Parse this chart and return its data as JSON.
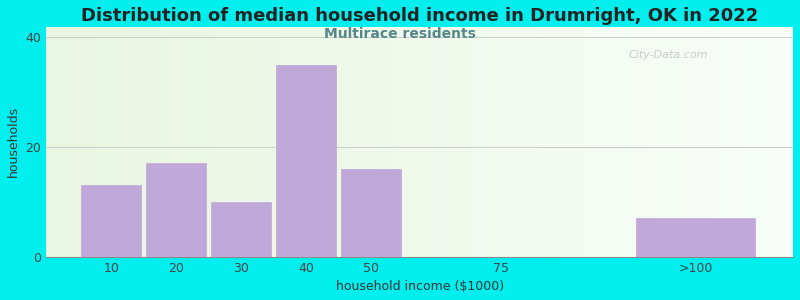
{
  "title": "Distribution of median household income in Drumright, OK in 2022",
  "subtitle": "Multirace residents",
  "xlabel": "household income ($1000)",
  "ylabel": "households",
  "bar_labels": [
    "10",
    "20",
    "30",
    "40",
    "50",
    "75",
    ">100"
  ],
  "bar_values": [
    13,
    17,
    10,
    35,
    16,
    0,
    7
  ],
  "bar_positions": [
    1,
    2,
    3,
    4,
    5,
    7,
    10
  ],
  "bar_widths": [
    1,
    1,
    1,
    1,
    1,
    2,
    2
  ],
  "bar_color": "#c0a8d8",
  "bar_edgecolor": "#c0a8d8",
  "ylim": [
    0,
    42
  ],
  "xlim": [
    0,
    11.5
  ],
  "yticks": [
    0,
    20,
    40
  ],
  "xtick_positions": [
    1,
    2,
    3,
    4,
    5,
    7,
    10
  ],
  "background_color": "#00eeee",
  "plot_bg_left_color": "#e8f5e0",
  "plot_bg_right_color": "#f8fdf8",
  "title_fontsize": 13,
  "subtitle_fontsize": 10,
  "subtitle_color": "#558888",
  "axis_label_fontsize": 9,
  "tick_label_fontsize": 9,
  "watermark": "City-Data.com",
  "grid_color": "#cccccc"
}
